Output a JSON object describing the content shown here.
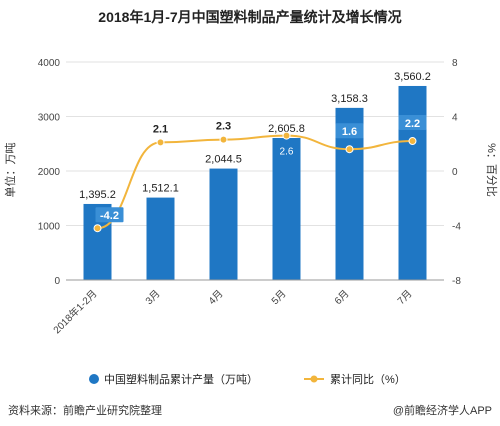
{
  "chart_data": {
    "type": "bar",
    "title": "2018年1月-7月中国塑料制品产量统计及增长情况",
    "ylabel_left": "单位：万吨",
    "ylabel_right": "%：百分比",
    "categories": [
      "2018年1-2月",
      "3月",
      "4月",
      "5月",
      "6月",
      "7月"
    ],
    "left_ylim": [
      0,
      4000
    ],
    "left_ticks": [
      "0",
      "1000",
      "2000",
      "3000",
      "4000"
    ],
    "right_ylim": [
      -8,
      8
    ],
    "right_ticks": [
      "-8",
      "-4",
      "0",
      "4",
      "8"
    ],
    "series": [
      {
        "name": "中国塑料制品累计产量（万吨）",
        "type": "bar",
        "axis": "left",
        "values": [
          1395.2,
          1512.1,
          2044.5,
          2605.8,
          3158.3,
          3560.2
        ],
        "labels": [
          "1,395.2",
          "1,512.1",
          "2,044.5",
          "2,605.8",
          "3,158.3",
          "3,560.2"
        ]
      },
      {
        "name": "累计同比（%）",
        "type": "line",
        "axis": "right",
        "values": [
          -4.2,
          2.1,
          2.3,
          2.6,
          1.6,
          2.2
        ],
        "labels": [
          "-4.2",
          "2.1",
          "2.3",
          "2.6",
          "1.6",
          "2.2"
        ]
      }
    ],
    "grid": true,
    "legend_position": "bottom"
  },
  "colors": {
    "bar": "#1f77c4",
    "line": "#f2b53c",
    "label_box": "#3a8fd6"
  },
  "footer": {
    "source": "资料来源：前瞻产业研究院整理",
    "brand": "@前瞻经济学人APP"
  }
}
